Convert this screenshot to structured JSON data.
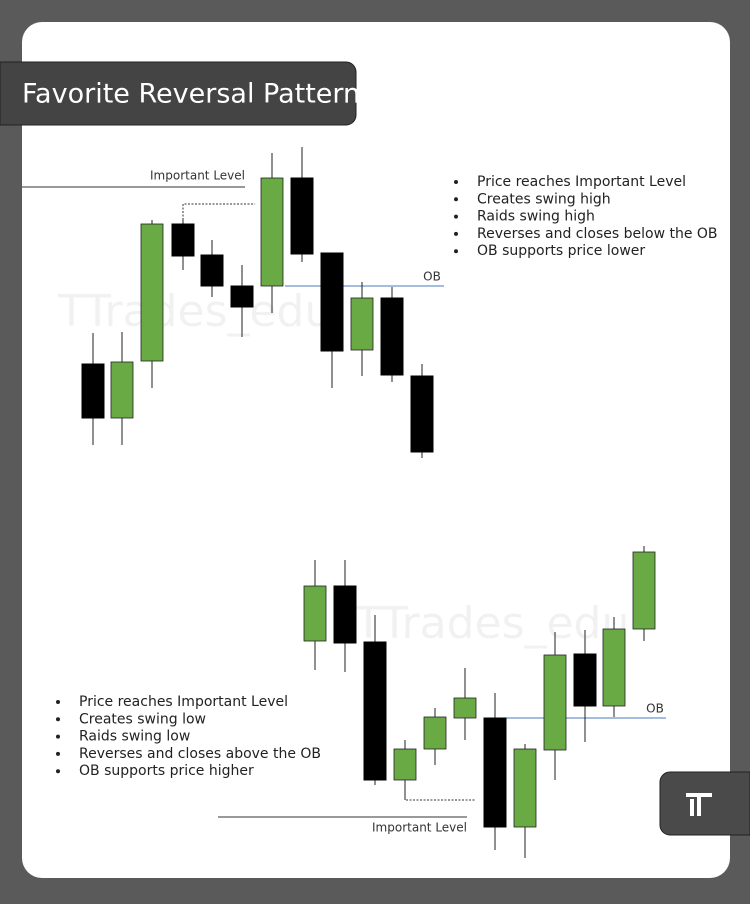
{
  "title": "Favorite Reversal Pattern",
  "watermark": "TTrades_edu",
  "top_diagram": {
    "level_label": "Important Level",
    "ob_label": "OB",
    "bullets": [
      "Price reaches Important Level",
      "Creates swing high",
      "Raids swing high",
      "Reverses and closes below the OB",
      "OB supports price lower"
    ]
  },
  "bottom_diagram": {
    "level_label": "Important Level",
    "ob_label": "OB",
    "bullets": [
      "Price reaches Important Level",
      "Creates swing low",
      "Raids swing low",
      "Reverses and closes above the OB",
      "OB supports price higher"
    ]
  }
}
